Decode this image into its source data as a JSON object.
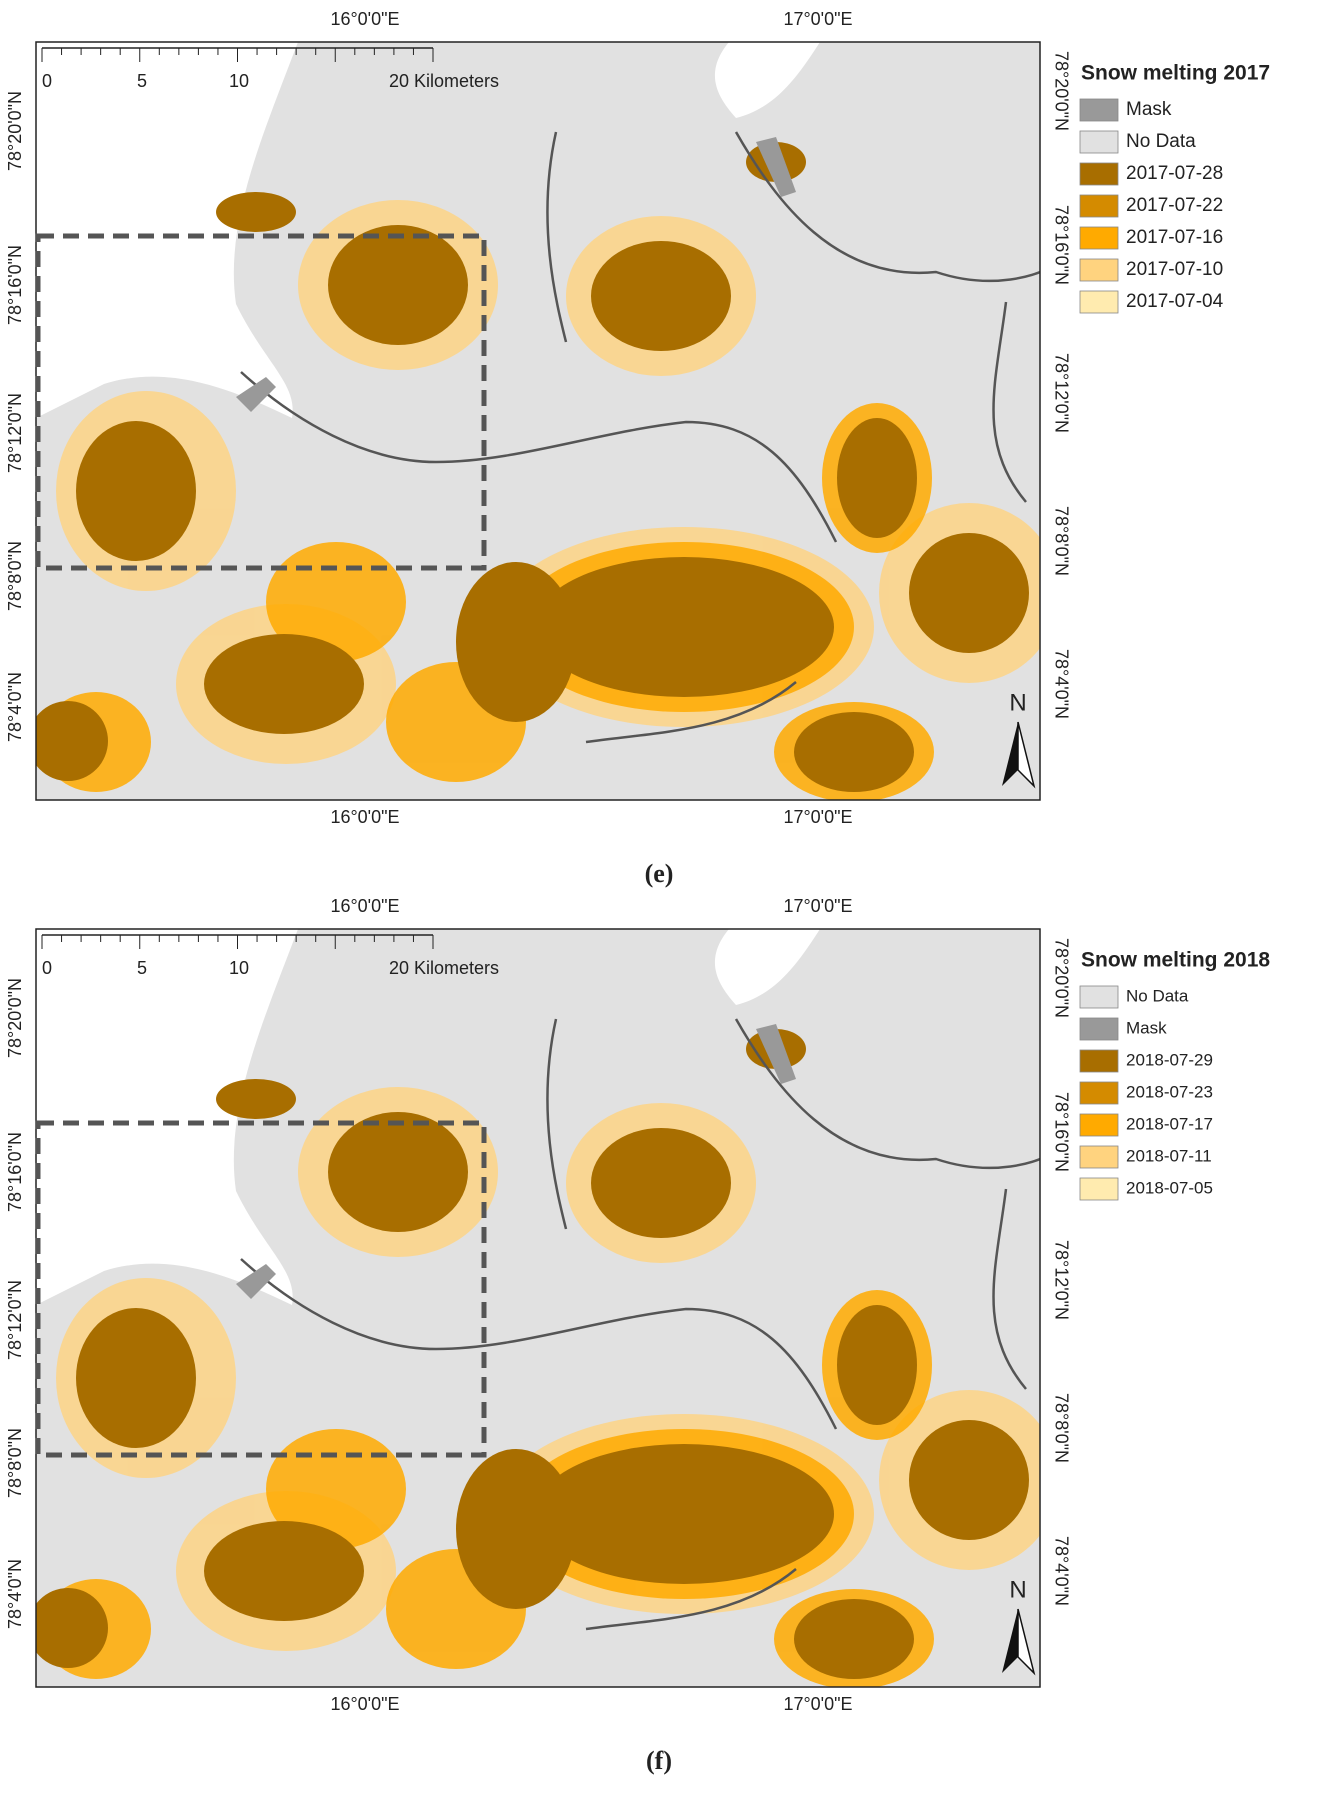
{
  "panels": [
    {
      "label": "(e)",
      "top_longitudes": [
        "16°0'0\"E",
        "17°0'0\"E"
      ],
      "bottom_longitudes": [
        "16°0'0\"E",
        "17°0'0\"E"
      ],
      "left_latitudes": [
        "78°20'0\"N",
        "78°16'0\"N",
        "78°12'0\"N",
        "78°8'0\"N",
        "78°4'0\"N"
      ],
      "right_latitudes": [
        "78°20'0\"N",
        "78°16'0\"N",
        "78°12'0\"N",
        "78°8'0\"N",
        "78°4'0\"N"
      ],
      "scale_bar": [
        "0",
        "5",
        "10",
        "20 Kilometers"
      ],
      "north": "N",
      "legend": {
        "title": "Snow melting 2017",
        "items": [
          {
            "label": "Mask",
            "color": "#999999"
          },
          {
            "label": "No Data",
            "color": "#e1e1e1"
          },
          {
            "label": "2017-07-28",
            "color": "#a86e00"
          },
          {
            "label": "2017-07-22",
            "color": "#d48b00"
          },
          {
            "label": "2017-07-16",
            "color": "#ffaa00"
          },
          {
            "label": "2017-07-10",
            "color": "#ffd37f"
          },
          {
            "label": "2017-07-04",
            "color": "#ffebaf"
          }
        ]
      }
    },
    {
      "label": "(f)",
      "top_longitudes": [
        "16°0'0\"E",
        "17°0'0\"E"
      ],
      "bottom_longitudes": [
        "16°0'0\"E",
        "17°0'0\"E"
      ],
      "left_latitudes": [
        "78°20'0\"N",
        "78°16'0\"N",
        "78°12'0\"N",
        "78°8'0\"N",
        "78°4'0\"N"
      ],
      "right_latitudes": [
        "78°20'0\"N",
        "78°16'0\"N",
        "78°12'0\"N",
        "78°8'0\"N",
        "78°4'0\"N"
      ],
      "scale_bar": [
        "0",
        "5",
        "10",
        "20 Kilometers"
      ],
      "north": "N",
      "legend": {
        "title": "Snow melting 2018",
        "items": [
          {
            "label": "No Data",
            "color": "#e1e1e1"
          },
          {
            "label": "Mask",
            "color": "#999999"
          },
          {
            "label": "2018-07-29",
            "color": "#a86e00"
          },
          {
            "label": "2018-07-23",
            "color": "#d48b00"
          },
          {
            "label": "2018-07-17",
            "color": "#ffaa00"
          },
          {
            "label": "2018-07-11",
            "color": "#ffd37f"
          },
          {
            "label": "2018-07-05",
            "color": "#ffebaf"
          }
        ]
      }
    }
  ]
}
